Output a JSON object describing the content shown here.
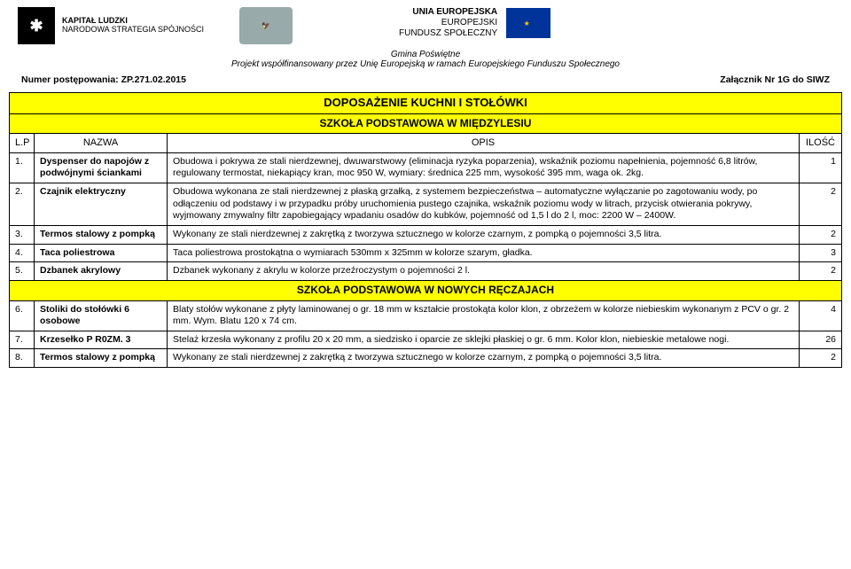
{
  "logos": {
    "kl_title": "KAPITAŁ LUDZKI",
    "kl_sub": "NARODOWA STRATEGIA SPÓJNOŚCI",
    "eu_title": "UNIA EUROPEJSKA",
    "eu_sub1": "EUROPEJSKI",
    "eu_sub2": "FUNDUSZ SPOŁECZNY"
  },
  "project": {
    "gmina": "Gmina Poświętne",
    "line": "Projekt  współfinansowany przez Unię Europejską w ramach Europejskiego Funduszu Społecznego"
  },
  "meta": {
    "left": "Numer postępowania: ZP.271.02.2015",
    "right": "Załącznik Nr 1G do SIWZ"
  },
  "table": {
    "title": "DOPOSAŻENIE KUCHNI I STOŁÓWKI",
    "subtitle": "SZKOŁA PODSTAWOWA W MIĘDZYLESIU",
    "head": {
      "lp": "L.P",
      "nazwa": "NAZWA",
      "opis": "OPIS",
      "ilosc": "ILOŚĆ"
    },
    "section2": "SZKOŁA PODSTAWOWA W NOWYCH RĘCZAJACH",
    "rows": [
      {
        "n": "1.",
        "name": "Dyspenser do napojów z podwójnymi ściankami",
        "desc": "Obudowa i pokrywa ze stali nierdzewnej, dwuwarstwowy (eliminacja ryzyka poparzenia), wskaźnik poziomu napełnienia, pojemność 6,8 litrów, regulowany termostat, niekapiący kran, moc 950 W, wymiary: średnica 225 mm, wysokość 395 mm, waga ok. 2kg.",
        "q": "1"
      },
      {
        "n": "2.",
        "name": "Czajnik elektryczny",
        "desc": "Obudowa wykonana ze stali nierdzewnej z płaską grzałką, z systemem bezpieczeństwa – automatyczne wyłączanie po zagotowaniu wody, po odłączeniu od podstawy i w przypadku próby uruchomienia pustego czajnika, wskaźnik poziomu wody w litrach, przycisk otwierania pokrywy, wyjmowany zmywalny filtr zapobiegający wpadaniu osadów do kubków, pojemność od 1,5 l do 2 l, moc: 2200 W – 2400W.",
        "q": "2"
      },
      {
        "n": "3.",
        "name": "Termos stalowy z pompką",
        "desc": "Wykonany ze stali nierdzewnej z zakrętką z tworzywa sztucznego w kolorze czarnym, z pompką o pojemności 3,5 litra.",
        "q": "2"
      },
      {
        "n": "4.",
        "name": "Taca poliestrowa",
        "desc": "Taca poliestrowa prostokątna o wymiarach 530mm x 325mm w kolorze szarym, gładka.",
        "q": "3"
      },
      {
        "n": "5.",
        "name": "Dzbanek akrylowy",
        "desc": "Dzbanek wykonany z akrylu w kolorze przeźroczystym o pojemności 2 l.",
        "q": "2"
      },
      {
        "n": "6.",
        "name": "Stoliki do stołówki 6 osobowe",
        "desc": "Blaty stołów wykonane z płyty laminowanej o gr. 18 mm w kształcie prostokąta kolor klon,  z obrzeżem w kolorze niebieskim wykonanym z PCV o gr. 2 mm. Wym. Blatu 120 x 74 cm.",
        "q": "4"
      },
      {
        "n": "7.",
        "name": "Krzesełko P R0ZM. 3",
        "desc": "Stelaż krzesła wykonany z profilu 20 x 20 mm, a siedzisko i oparcie ze sklejki płaskiej o gr. 6 mm. Kolor klon, niebieskie metalowe nogi.",
        "q": "26"
      },
      {
        "n": "8.",
        "name": " Termos stalowy z pompką",
        "desc": "Wykonany ze stali nierdzewnej z zakrętką z tworzywa sztucznego w kolorze czarnym, z pompką o pojemności 3,5 litra.",
        "q": "2"
      }
    ]
  }
}
